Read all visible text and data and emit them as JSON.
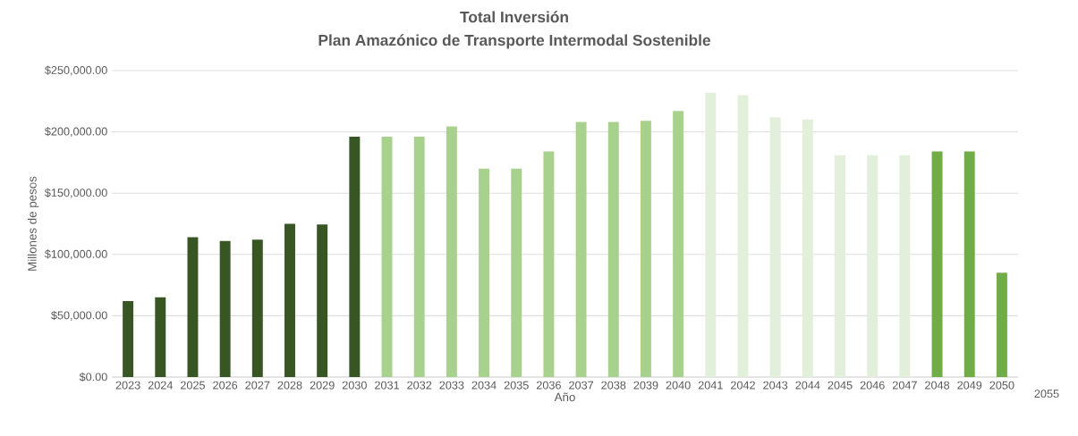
{
  "chart_data": {
    "type": "bar",
    "title": "Total Inversión",
    "subtitle": "Plan Amazónico de Transporte Intermodal Sostenible",
    "xlabel": "Año",
    "ylabel": "Millones de pesos",
    "categories": [
      "2023",
      "2024",
      "2025",
      "2026",
      "2027",
      "2028",
      "2029",
      "2030",
      "2031",
      "2032",
      "2033",
      "2034",
      "2035",
      "2036",
      "2037",
      "2038",
      "2039",
      "2040",
      "2041",
      "2042",
      "2043",
      "2044",
      "2045",
      "2046",
      "2047",
      "2048",
      "2049",
      "2050"
    ],
    "values": [
      62000,
      65000,
      114000,
      111000,
      112000,
      125000,
      124500,
      196000,
      196000,
      196000,
      204500,
      170000,
      170000,
      184000,
      208000,
      208000,
      209000,
      217000,
      232000,
      230000,
      212000,
      210000,
      181000,
      181000,
      181000,
      184000,
      184000,
      85000
    ],
    "colors": [
      "#375623",
      "#375623",
      "#375623",
      "#375623",
      "#375623",
      "#375623",
      "#375623",
      "#375623",
      "#a9d18e",
      "#a9d18e",
      "#a9d18e",
      "#a9d18e",
      "#a9d18e",
      "#a9d18e",
      "#a9d18e",
      "#a9d18e",
      "#a9d18e",
      "#a9d18e",
      "#e2efda",
      "#e2efda",
      "#e2efda",
      "#e2efda",
      "#e2efda",
      "#e2efda",
      "#e2efda",
      "#70ad47",
      "#70ad47",
      "#70ad47"
    ],
    "ylim": [
      0,
      250000
    ],
    "yticks": [
      {
        "value": 0,
        "label": "$0.00"
      },
      {
        "value": 50000,
        "label": "$50,000.00"
      },
      {
        "value": 100000,
        "label": "$100,000.00"
      },
      {
        "value": 150000,
        "label": "$150,000.00"
      },
      {
        "value": 200000,
        "label": "$200,000.00"
      },
      {
        "value": 250000,
        "label": "$250,000.00"
      }
    ],
    "grid": "y",
    "annotations": [
      "2055"
    ]
  }
}
